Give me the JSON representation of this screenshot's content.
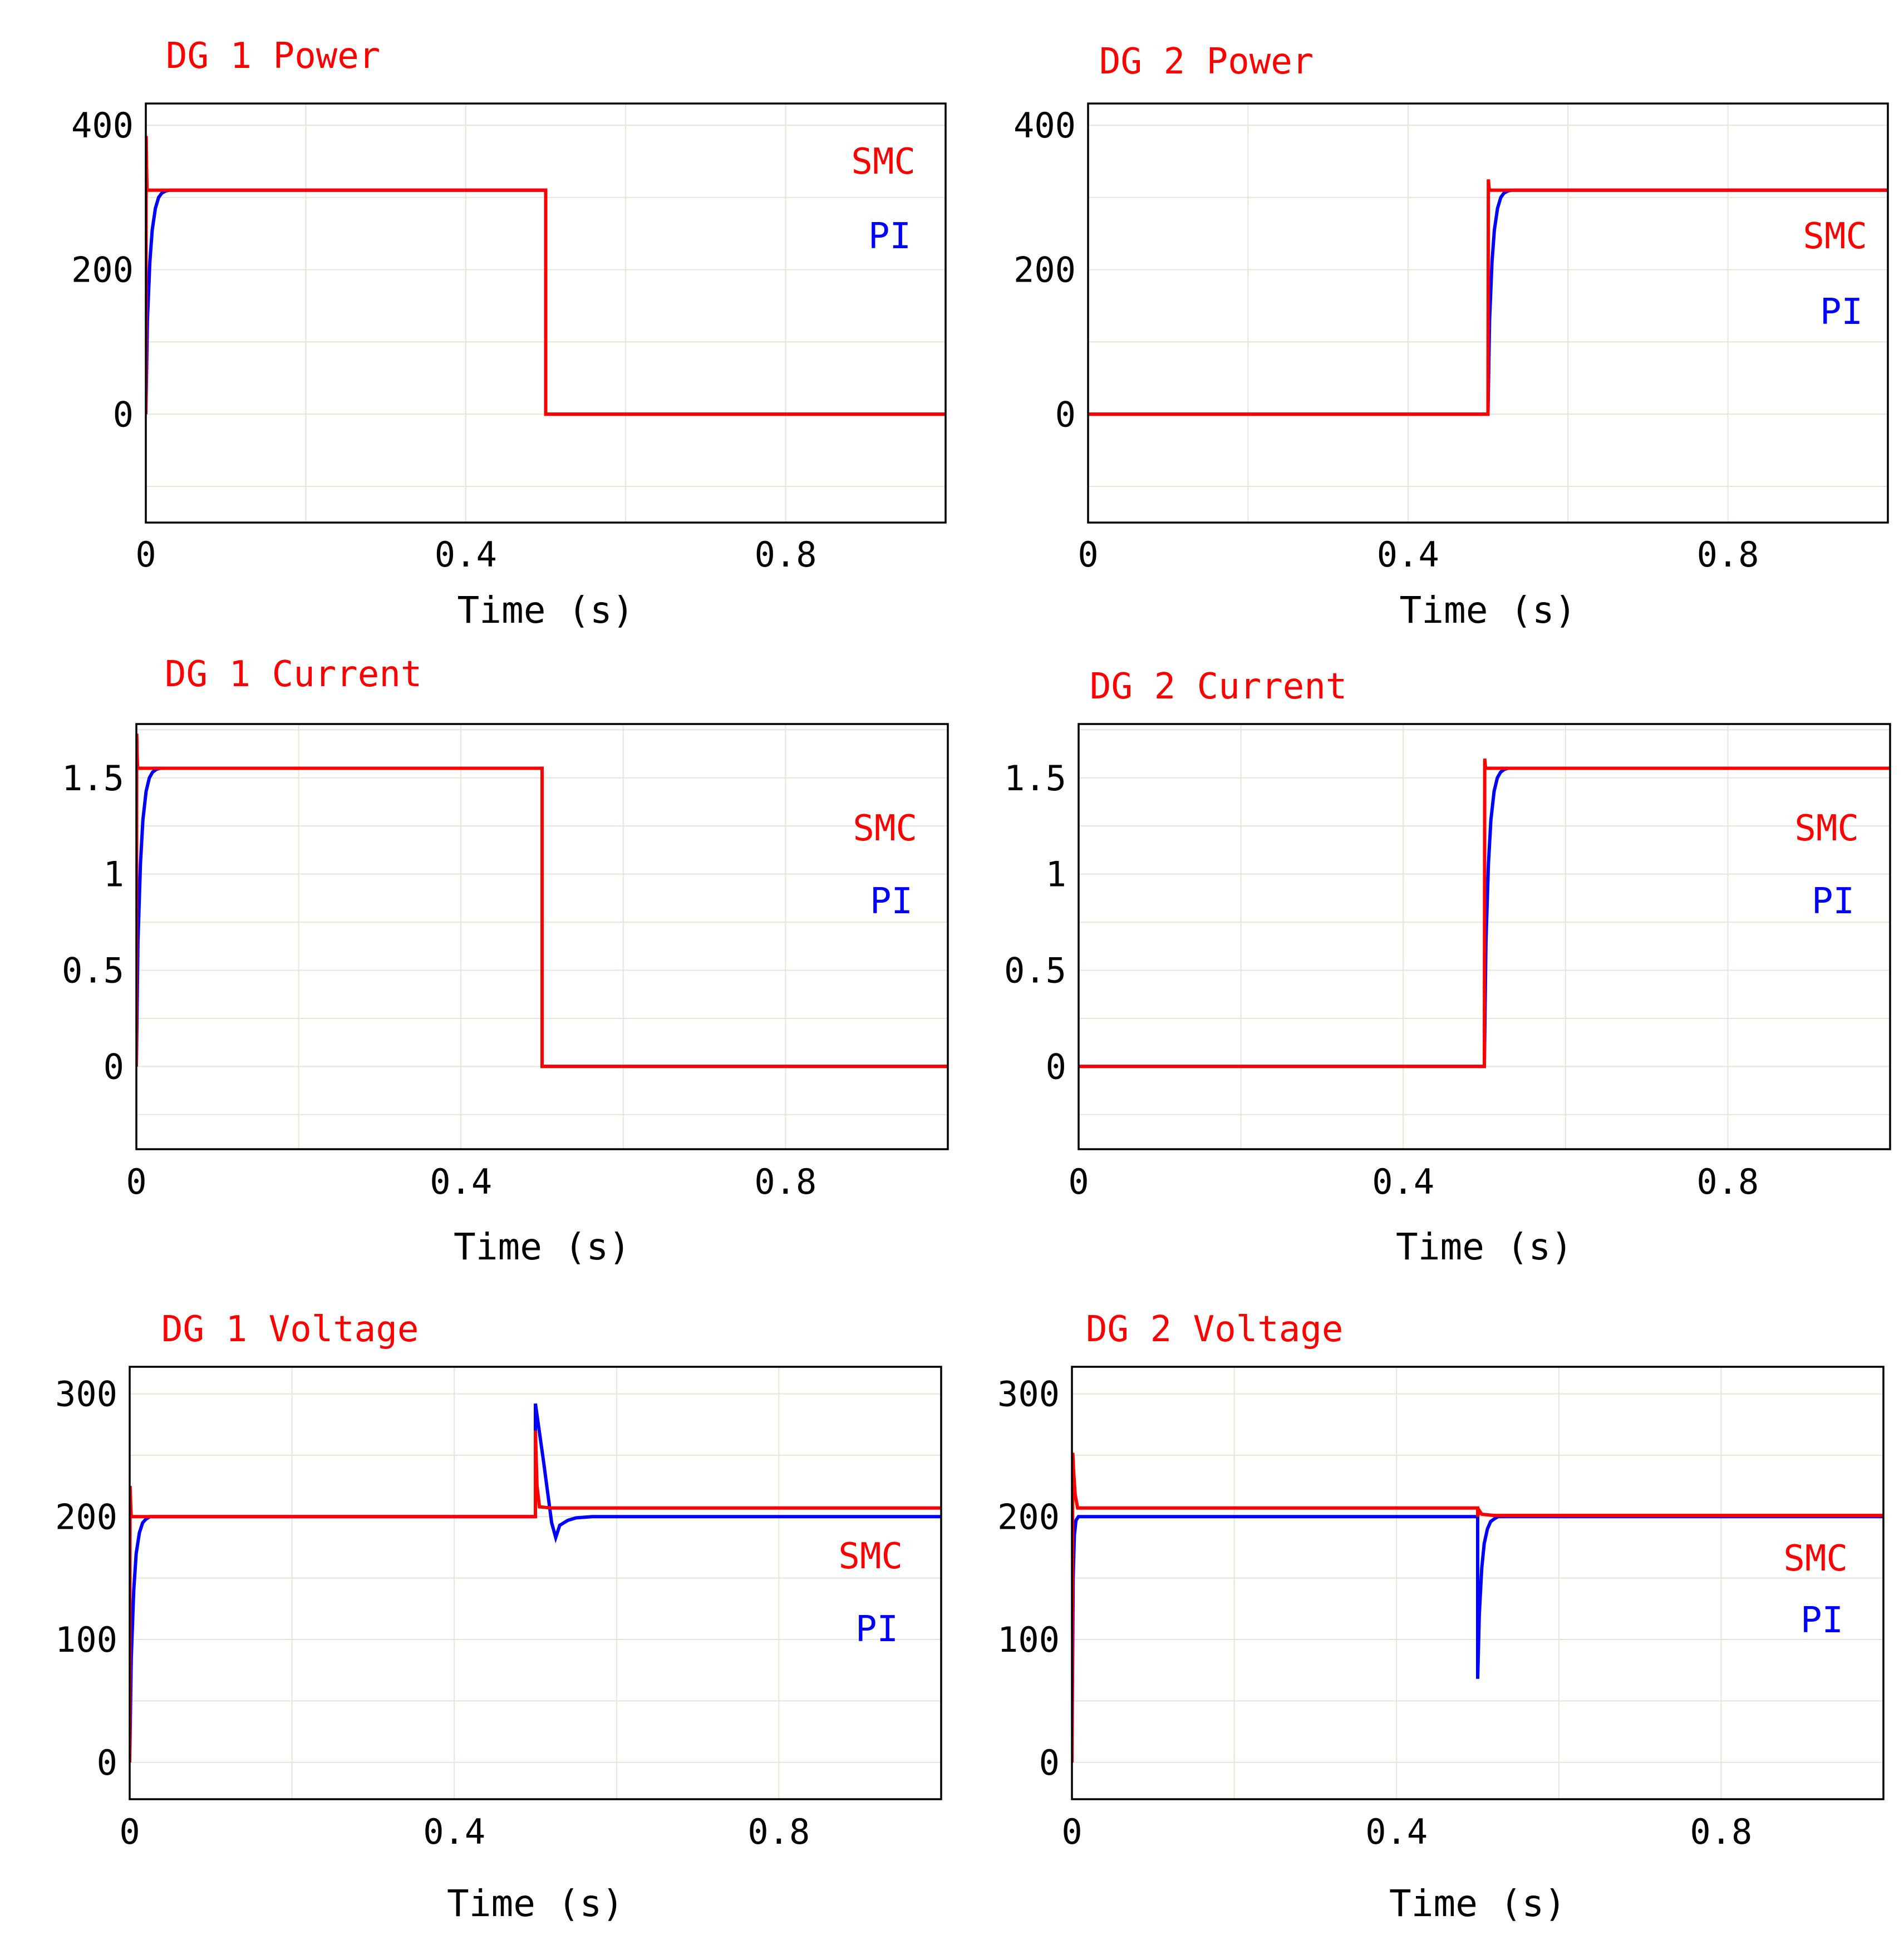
{
  "figure": {
    "colors": {
      "smc": "#ff0000",
      "pi": "#0000ff",
      "title": "#ff0000",
      "grid": "#e4e6d8",
      "frame": "#000000"
    }
  },
  "chart_data": [
    {
      "id": "dg1-power",
      "type": "line",
      "title": "DG 1 Power",
      "xlabel": "Time (s)",
      "ylabel": "",
      "xlim": [
        0,
        1.0
      ],
      "ylim": [
        -150,
        430
      ],
      "xticks": [
        0,
        0.4,
        0.8
      ],
      "xtick_labels": [
        "0",
        "0.4",
        "0.8"
      ],
      "yticks": [
        0,
        200,
        400
      ],
      "ytick_labels": [
        "0",
        "200",
        "400"
      ],
      "grid": true,
      "legend": [
        "SMC",
        "PI"
      ],
      "legend_position": "top-right",
      "series": [
        {
          "name": "PI",
          "color": "#0000ff",
          "x": [
            0,
            0.002,
            0.005,
            0.008,
            0.012,
            0.016,
            0.02,
            0.025,
            0.03,
            0.5,
            0.5,
            1.0
          ],
          "y": [
            0,
            130,
            210,
            255,
            285,
            300,
            306,
            309,
            310,
            310,
            0,
            0
          ]
        },
        {
          "name": "SMC",
          "color": "#ff0000",
          "x": [
            0,
            0.0005,
            0.001,
            0.0015,
            0.002,
            0.5,
            0.5,
            1.0
          ],
          "y": [
            0,
            385,
            340,
            312,
            310,
            310,
            0,
            0
          ]
        }
      ]
    },
    {
      "id": "dg2-power",
      "type": "line",
      "title": "DG 2 Power",
      "xlabel": "Time (s)",
      "ylabel": "",
      "xlim": [
        0,
        1.0
      ],
      "ylim": [
        -150,
        430
      ],
      "xticks": [
        0,
        0.4,
        0.8
      ],
      "xtick_labels": [
        "0",
        "0.4",
        "0.8"
      ],
      "yticks": [
        0,
        200,
        400
      ],
      "ytick_labels": [
        "0",
        "200",
        "400"
      ],
      "grid": true,
      "legend": [
        "SMC",
        "PI"
      ],
      "legend_position": "right",
      "series": [
        {
          "name": "PI",
          "color": "#0000ff",
          "x": [
            0,
            0.5,
            0.502,
            0.505,
            0.508,
            0.512,
            0.516,
            0.52,
            0.525,
            0.53,
            1.0
          ],
          "y": [
            0,
            0,
            130,
            210,
            255,
            285,
            300,
            306,
            309,
            310,
            310
          ]
        },
        {
          "name": "SMC",
          "color": "#ff0000",
          "x": [
            0,
            0.5,
            0.5005,
            0.501,
            0.5015,
            0.502,
            1.0
          ],
          "y": [
            0,
            0,
            325,
            318,
            312,
            310,
            310
          ]
        }
      ]
    },
    {
      "id": "dg1-current",
      "type": "line",
      "title": "DG 1 Current",
      "xlabel": "Time (s)",
      "ylabel": "",
      "xlim": [
        0,
        1.0
      ],
      "ylim": [
        -0.43,
        1.78
      ],
      "xticks": [
        0,
        0.4,
        0.8
      ],
      "xtick_labels": [
        "0",
        "0.4",
        "0.8"
      ],
      "yticks": [
        0,
        0.5,
        1,
        1.5
      ],
      "ytick_labels": [
        "0",
        "0.5",
        "1",
        "1.5"
      ],
      "grid": true,
      "legend": [
        "SMC",
        "PI"
      ],
      "legend_position": "right",
      "series": [
        {
          "name": "PI",
          "color": "#0000ff",
          "x": [
            0,
            0.002,
            0.005,
            0.008,
            0.012,
            0.016,
            0.02,
            0.025,
            0.03,
            0.5,
            0.5,
            1.0
          ],
          "y": [
            0,
            0.65,
            1.05,
            1.28,
            1.43,
            1.5,
            1.53,
            1.545,
            1.55,
            1.55,
            0,
            0
          ]
        },
        {
          "name": "SMC",
          "color": "#ff0000",
          "x": [
            0,
            0.0005,
            0.001,
            0.0015,
            0.002,
            0.5,
            0.5,
            1.0
          ],
          "y": [
            0,
            1.73,
            1.62,
            1.56,
            1.55,
            1.55,
            0,
            0
          ]
        }
      ]
    },
    {
      "id": "dg2-current",
      "type": "line",
      "title": "DG 2 Current",
      "xlabel": "Time (s)",
      "ylabel": "",
      "xlim": [
        0,
        1.0
      ],
      "ylim": [
        -0.43,
        1.78
      ],
      "xticks": [
        0,
        0.4,
        0.8
      ],
      "xtick_labels": [
        "0",
        "0.4",
        "0.8"
      ],
      "yticks": [
        0,
        0.5,
        1,
        1.5
      ],
      "ytick_labels": [
        "0",
        "0.5",
        "1",
        "1.5"
      ],
      "grid": true,
      "legend": [
        "SMC",
        "PI"
      ],
      "legend_position": "right",
      "series": [
        {
          "name": "PI",
          "color": "#0000ff",
          "x": [
            0,
            0.5,
            0.502,
            0.505,
            0.508,
            0.512,
            0.516,
            0.52,
            0.525,
            0.53,
            1.0
          ],
          "y": [
            0,
            0,
            0.65,
            1.05,
            1.28,
            1.43,
            1.5,
            1.53,
            1.545,
            1.55,
            1.55
          ]
        },
        {
          "name": "SMC",
          "color": "#ff0000",
          "x": [
            0,
            0.5,
            0.5005,
            0.501,
            0.5015,
            0.502,
            1.0
          ],
          "y": [
            0,
            0,
            1.6,
            1.57,
            1.555,
            1.55,
            1.55
          ]
        }
      ]
    },
    {
      "id": "dg1-voltage",
      "type": "line",
      "title": "DG 1 Voltage",
      "xlabel": "Time (s)",
      "ylabel": "",
      "xlim": [
        0,
        1.0
      ],
      "ylim": [
        -30,
        322
      ],
      "xticks": [
        0,
        0.4,
        0.8
      ],
      "xtick_labels": [
        "0",
        "0.4",
        "0.8"
      ],
      "yticks": [
        0,
        100,
        200,
        300
      ],
      "ytick_labels": [
        "0",
        "100",
        "200",
        "300"
      ],
      "grid": true,
      "legend": [
        "SMC",
        "PI"
      ],
      "legend_position": "right",
      "series": [
        {
          "name": "PI",
          "color": "#0000ff",
          "x": [
            0,
            0.002,
            0.005,
            0.008,
            0.012,
            0.016,
            0.02,
            0.025,
            0.03,
            0.5,
            0.5,
            0.51,
            0.52,
            0.525,
            0.53,
            0.54,
            0.55,
            0.57,
            1.0
          ],
          "y": [
            0,
            85,
            140,
            170,
            187,
            195,
            198,
            200,
            200,
            200,
            292,
            245,
            195,
            183,
            193,
            197,
            199,
            200,
            200
          ]
        },
        {
          "name": "SMC",
          "color": "#ff0000",
          "x": [
            0,
            0.0005,
            0.001,
            0.0015,
            0.002,
            0.5,
            0.5,
            0.502,
            0.505,
            0.52,
            0.6,
            1.0
          ],
          "y": [
            0,
            225,
            215,
            205,
            200,
            200,
            270,
            225,
            208,
            207,
            207,
            207
          ]
        }
      ]
    },
    {
      "id": "dg2-voltage",
      "type": "line",
      "title": "DG 2 Voltage",
      "xlabel": "Time (s)",
      "ylabel": "",
      "xlim": [
        0,
        1.0
      ],
      "ylim": [
        -30,
        322
      ],
      "xticks": [
        0,
        0.4,
        0.8
      ],
      "xtick_labels": [
        "0",
        "0.4",
        "0.8"
      ],
      "yticks": [
        0,
        100,
        200,
        300
      ],
      "ytick_labels": [
        "0",
        "100",
        "200",
        "300"
      ],
      "grid": true,
      "legend": [
        "SMC",
        "PI"
      ],
      "legend_position": "right",
      "series": [
        {
          "name": "PI",
          "color": "#0000ff",
          "x": [
            0,
            0.0015,
            0.003,
            0.005,
            0.008,
            0.5,
            0.5,
            0.502,
            0.505,
            0.508,
            0.512,
            0.516,
            0.52,
            0.525,
            0.53,
            1.0
          ],
          "y": [
            0,
            150,
            185,
            197,
            200,
            200,
            68,
            120,
            158,
            178,
            190,
            196,
            198,
            200,
            200,
            200
          ]
        },
        {
          "name": "SMC",
          "color": "#ff0000",
          "x": [
            0,
            0.001,
            0.002,
            0.004,
            0.007,
            0.5,
            0.5,
            0.502,
            0.505,
            0.52,
            1.0
          ],
          "y": [
            0,
            252,
            238,
            218,
            207,
            207,
            200,
            205,
            202,
            201,
            201
          ]
        }
      ]
    }
  ]
}
